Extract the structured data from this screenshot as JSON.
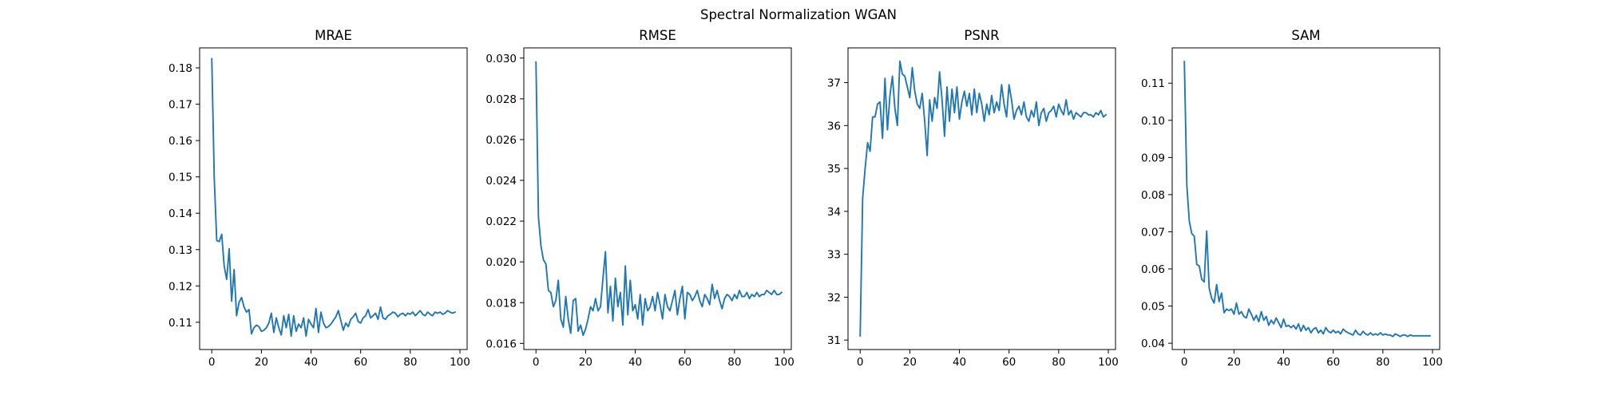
{
  "figure": {
    "title": "Spectral Normalization WGAN",
    "line_color": "#1f77b4"
  },
  "chart_data": [
    {
      "type": "line",
      "title": "MRAE",
      "xlabel": "",
      "ylabel": "",
      "xlim": [
        -4.9,
        102.9
      ],
      "ylim": [
        0.1025,
        0.1855
      ],
      "xticks": [
        0,
        20,
        40,
        60,
        80,
        100
      ],
      "yticks": [
        0.11,
        0.12,
        0.13,
        0.14,
        0.15,
        0.16,
        0.17,
        0.18
      ],
      "grid": false,
      "series": [
        {
          "color": "#1f77b4",
          "y": [
            0.1825,
            0.1495,
            0.1325,
            0.1322,
            0.1342,
            0.1255,
            0.1218,
            0.1302,
            0.1158,
            0.1245,
            0.1118,
            0.1155,
            0.1168,
            0.1142,
            0.1128,
            0.1135,
            0.1068,
            0.1085,
            0.1092,
            0.1088,
            0.1075,
            0.1078,
            0.1085,
            0.1098,
            0.1125,
            0.1072,
            0.1112,
            0.1085,
            0.1065,
            0.1118,
            0.1085,
            0.1122,
            0.1062,
            0.1118,
            0.1075,
            0.1095,
            0.1085,
            0.1112,
            0.1062,
            0.1108,
            0.1095,
            0.1085,
            0.1138,
            0.1072,
            0.1128,
            0.1098,
            0.1085,
            0.1088,
            0.1095,
            0.1105,
            0.1115,
            0.1132,
            0.1105,
            0.1078,
            0.1098,
            0.1088,
            0.1108,
            0.1115,
            0.1125,
            0.1102,
            0.1098,
            0.1112,
            0.1118,
            0.1135,
            0.1112,
            0.1118,
            0.1125,
            0.1108,
            0.1142,
            0.1112,
            0.1108,
            0.1118,
            0.1122,
            0.1128,
            0.1125,
            0.1115,
            0.1122,
            0.1125,
            0.1118,
            0.1125,
            0.1122,
            0.1128,
            0.1118,
            0.1125,
            0.1132,
            0.1122,
            0.1118,
            0.1128,
            0.1122,
            0.1118,
            0.1128,
            0.1125,
            0.1128,
            0.1122,
            0.1125,
            0.1132,
            0.1128,
            0.1125,
            0.1128
          ]
        }
      ]
    },
    {
      "type": "line",
      "title": "RMSE",
      "xlabel": "",
      "ylabel": "",
      "xlim": [
        -4.9,
        102.9
      ],
      "ylim": [
        0.0157,
        0.0305
      ],
      "xticks": [
        0,
        20,
        40,
        60,
        80,
        100
      ],
      "yticks": [
        0.016,
        0.018,
        0.02,
        0.022,
        0.024,
        0.026,
        0.028,
        0.03
      ],
      "grid": false,
      "series": [
        {
          "color": "#1f77b4",
          "y": [
            0.0298,
            0.0222,
            0.0208,
            0.0201,
            0.0199,
            0.0186,
            0.0185,
            0.0178,
            0.0181,
            0.0191,
            0.0172,
            0.0168,
            0.0183,
            0.0172,
            0.0165,
            0.0181,
            0.0182,
            0.0166,
            0.0169,
            0.0164,
            0.0167,
            0.0172,
            0.0178,
            0.0176,
            0.0182,
            0.0176,
            0.0178,
            0.0192,
            0.0205,
            0.0175,
            0.0188,
            0.0171,
            0.0192,
            0.0178,
            0.0185,
            0.0169,
            0.0198,
            0.0174,
            0.0191,
            0.0176,
            0.0179,
            0.0172,
            0.0184,
            0.0169,
            0.0182,
            0.0176,
            0.0178,
            0.0183,
            0.0176,
            0.0185,
            0.0179,
            0.0172,
            0.0184,
            0.0178,
            0.0176,
            0.0181,
            0.0186,
            0.0174,
            0.0182,
            0.0188,
            0.0172,
            0.0185,
            0.0184,
            0.0181,
            0.0183,
            0.0186,
            0.0181,
            0.0178,
            0.0184,
            0.0182,
            0.0179,
            0.0189,
            0.0182,
            0.0186,
            0.0181,
            0.0177,
            0.0182,
            0.0184,
            0.0183,
            0.0181,
            0.0184,
            0.0182,
            0.0186,
            0.0183,
            0.0183,
            0.0185,
            0.0182,
            0.0184,
            0.0183,
            0.0185,
            0.0183,
            0.0184,
            0.0184,
            0.0186,
            0.0185,
            0.0184,
            0.0186,
            0.0184,
            0.0184,
            0.0185
          ]
        }
      ]
    },
    {
      "type": "line",
      "title": "PSNR",
      "xlabel": "",
      "ylabel": "",
      "xlim": [
        -4.9,
        102.9
      ],
      "ylim": [
        30.78,
        37.81
      ],
      "xticks": [
        0,
        20,
        40,
        60,
        80,
        100
      ],
      "yticks": [
        31,
        32,
        33,
        34,
        35,
        36,
        37
      ],
      "grid": false,
      "series": [
        {
          "color": "#1f77b4",
          "y": [
            31.1,
            34.3,
            35.0,
            35.6,
            35.4,
            36.2,
            36.2,
            36.5,
            36.55,
            35.7,
            37.1,
            35.9,
            36.7,
            37.15,
            36.4,
            36.0,
            37.5,
            37.2,
            37.15,
            36.9,
            36.65,
            37.35,
            36.8,
            36.5,
            36.4,
            36.75,
            36.1,
            35.3,
            36.6,
            36.1,
            36.65,
            36.4,
            37.25,
            36.6,
            35.75,
            36.9,
            36.1,
            36.85,
            36.3,
            36.9,
            36.15,
            36.55,
            36.8,
            36.45,
            36.75,
            36.25,
            36.85,
            36.3,
            36.75,
            36.5,
            36.1,
            36.5,
            36.25,
            36.7,
            36.3,
            36.55,
            36.35,
            36.95,
            36.5,
            36.2,
            36.95,
            36.6,
            36.15,
            36.35,
            36.45,
            36.25,
            36.55,
            36.2,
            36.1,
            36.35,
            36.2,
            36.55,
            36.0,
            36.3,
            36.4,
            36.1,
            36.3,
            36.35,
            36.45,
            36.2,
            36.5,
            36.35,
            36.25,
            36.6,
            36.25,
            36.35,
            36.15,
            36.3,
            36.25,
            36.2,
            36.3,
            36.3,
            36.25,
            36.25,
            36.2,
            36.3,
            36.25,
            36.35,
            36.2,
            36.25
          ]
        }
      ]
    },
    {
      "type": "line",
      "title": "SAM",
      "xlabel": "",
      "ylabel": "",
      "xlim": [
        -4.9,
        102.9
      ],
      "ylim": [
        0.0383,
        0.1195
      ],
      "xticks": [
        0,
        20,
        40,
        60,
        80,
        100
      ],
      "yticks": [
        0.04,
        0.05,
        0.06,
        0.07,
        0.08,
        0.09,
        0.1,
        0.11
      ],
      "grid": false,
      "series": [
        {
          "color": "#1f77b4",
          "y": [
            0.1158,
            0.0825,
            0.0728,
            0.0695,
            0.0688,
            0.0612,
            0.0608,
            0.0572,
            0.0565,
            0.0702,
            0.0548,
            0.0521,
            0.0508,
            0.0558,
            0.0512,
            0.0535,
            0.0482,
            0.0492,
            0.0488,
            0.0492,
            0.0478,
            0.0508,
            0.0478,
            0.0485,
            0.0472,
            0.0468,
            0.0492,
            0.0478,
            0.0462,
            0.0475,
            0.0458,
            0.0485,
            0.0462,
            0.0472,
            0.0448,
            0.0462,
            0.0452,
            0.0468,
            0.0455,
            0.0442,
            0.0465,
            0.0445,
            0.0448,
            0.0442,
            0.0448,
            0.0438,
            0.0452,
            0.0432,
            0.0448,
            0.0435,
            0.0442,
            0.0428,
            0.0438,
            0.0442,
            0.0428,
            0.0435,
            0.0425,
            0.0442,
            0.0432,
            0.0428,
            0.0435,
            0.0428,
            0.0432,
            0.0425,
            0.0438,
            0.0432,
            0.0428,
            0.0425,
            0.0422,
            0.0435,
            0.0425,
            0.0422,
            0.0432,
            0.0425,
            0.0422,
            0.0428,
            0.0422,
            0.0425,
            0.0422,
            0.0428,
            0.0422,
            0.0425,
            0.0422,
            0.0422,
            0.0418,
            0.0425,
            0.0422,
            0.0418,
            0.0422,
            0.0422,
            0.0418,
            0.0422,
            0.042,
            0.042,
            0.042,
            0.042,
            0.042,
            0.042,
            0.042,
            0.042
          ]
        }
      ]
    }
  ]
}
